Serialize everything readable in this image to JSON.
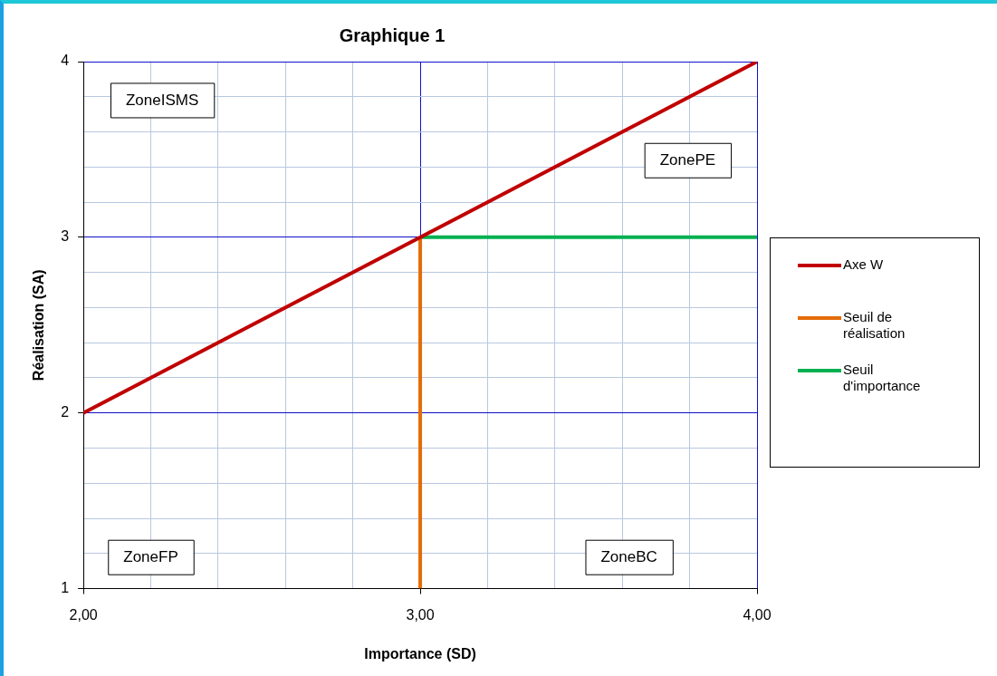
{
  "chart_data": {
    "type": "line",
    "title": "Graphique 1",
    "xlabel": "Importance (SD)",
    "ylabel": "Réalisation (SA)",
    "xlim": [
      2,
      4
    ],
    "ylim": [
      1,
      4
    ],
    "xticks": [
      {
        "value": 2,
        "label": "2,00"
      },
      {
        "value": 2.2,
        "label": null
      },
      {
        "value": 2.4,
        "label": null
      },
      {
        "value": 2.6,
        "label": null
      },
      {
        "value": 2.8,
        "label": null
      },
      {
        "value": 3,
        "label": "3,00"
      },
      {
        "value": 3.2,
        "label": null
      },
      {
        "value": 3.4,
        "label": null
      },
      {
        "value": 3.6,
        "label": null
      },
      {
        "value": 3.8,
        "label": null
      },
      {
        "value": 4,
        "label": "4,00"
      }
    ],
    "yticks": [
      1,
      {
        "value": 1.2,
        "label": null
      },
      {
        "value": 1.4,
        "label": null
      },
      {
        "value": 1.6,
        "label": null
      },
      {
        "value": 1.8,
        "label": null
      },
      2,
      {
        "value": 2.2,
        "label": null
      },
      {
        "value": 2.4,
        "label": null
      },
      {
        "value": 2.6,
        "label": null
      },
      {
        "value": 2.8,
        "label": null
      },
      3,
      {
        "value": 3.2,
        "label": null
      },
      {
        "value": 3.4,
        "label": null
      },
      {
        "value": 3.6,
        "label": null
      },
      {
        "value": 3.8,
        "label": null
      },
      4
    ],
    "grid": true,
    "legend": "right",
    "marker": "none",
    "series": [
      {
        "name": "Axe W",
        "color": "#c00000",
        "x": [
          2,
          4
        ],
        "values": [
          2,
          4
        ]
      },
      {
        "name": "Seuil de réalisation",
        "color": "#e36c09",
        "x": [
          3,
          3
        ],
        "values": [
          1,
          3
        ]
      },
      {
        "name": "Seuil d'importance",
        "color": "#00b050",
        "x": [
          3,
          4
        ],
        "values": [
          3,
          3
        ]
      }
    ],
    "annotations": [
      "ZoneISMS",
      "ZonePE",
      "ZoneFP",
      "ZoneBC"
    ]
  }
}
